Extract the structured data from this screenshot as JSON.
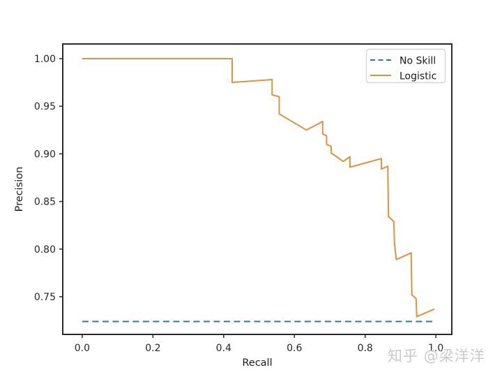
{
  "watermark": {
    "text": "知乎 @梁洋洋"
  },
  "colors": {
    "spine": "#2a2a2a",
    "tick_label": "#262626",
    "legend_border": "#cfcfcf",
    "legend_background": "#fefefe",
    "watermark": "#c4c4c4"
  },
  "chart_data": {
    "type": "line",
    "title": "",
    "xlabel": "Recall",
    "ylabel": "Precision",
    "xlim": [
      -0.055,
      1.045
    ],
    "ylim": [
      0.7104,
      1.0154
    ],
    "grid": false,
    "x_ticks": [
      0.0,
      0.2,
      0.4,
      0.6,
      0.8,
      1.0
    ],
    "x_tick_labels": [
      "0.0",
      "0.2",
      "0.4",
      "0.6",
      "0.8",
      "1.0"
    ],
    "y_ticks": [
      0.75,
      0.8,
      0.85,
      0.9,
      0.95,
      1.0
    ],
    "y_tick_labels": [
      "0.75",
      "0.80",
      "0.85",
      "0.90",
      "0.95",
      "1.00"
    ],
    "legend": {
      "position": "upper right",
      "entries": [
        {
          "label": "No Skill",
          "color": "#33798e",
          "line_style": "dashed"
        },
        {
          "label": "Logistic",
          "color": "#e0913d",
          "line_style": "solid"
        }
      ]
    },
    "series": [
      {
        "name": "No Skill",
        "line_style": "dashed",
        "color": "#33798e",
        "width": 2,
        "points": [
          [
            0.0,
            0.724
          ],
          [
            1.0,
            0.724
          ]
        ]
      },
      {
        "name": "Logistic",
        "line_style": "solid",
        "color": "#e0913d",
        "width": 2,
        "points": [
          [
            0.0,
            1.0
          ],
          [
            0.424,
            1.0
          ],
          [
            0.424,
            0.975
          ],
          [
            0.537,
            0.978
          ],
          [
            0.537,
            0.962
          ],
          [
            0.557,
            0.96
          ],
          [
            0.557,
            0.942
          ],
          [
            0.634,
            0.925
          ],
          [
            0.68,
            0.934
          ],
          [
            0.68,
            0.921
          ],
          [
            0.691,
            0.919
          ],
          [
            0.691,
            0.91
          ],
          [
            0.704,
            0.908
          ],
          [
            0.704,
            0.901
          ],
          [
            0.738,
            0.892
          ],
          [
            0.757,
            0.897
          ],
          [
            0.757,
            0.886
          ],
          [
            0.846,
            0.895
          ],
          [
            0.846,
            0.884
          ],
          [
            0.864,
            0.887
          ],
          [
            0.866,
            0.834
          ],
          [
            0.881,
            0.829
          ],
          [
            0.883,
            0.806
          ],
          [
            0.888,
            0.789
          ],
          [
            0.93,
            0.796
          ],
          [
            0.932,
            0.752
          ],
          [
            0.944,
            0.748
          ],
          [
            0.946,
            0.729
          ],
          [
            0.996,
            0.737
          ]
        ]
      }
    ]
  }
}
